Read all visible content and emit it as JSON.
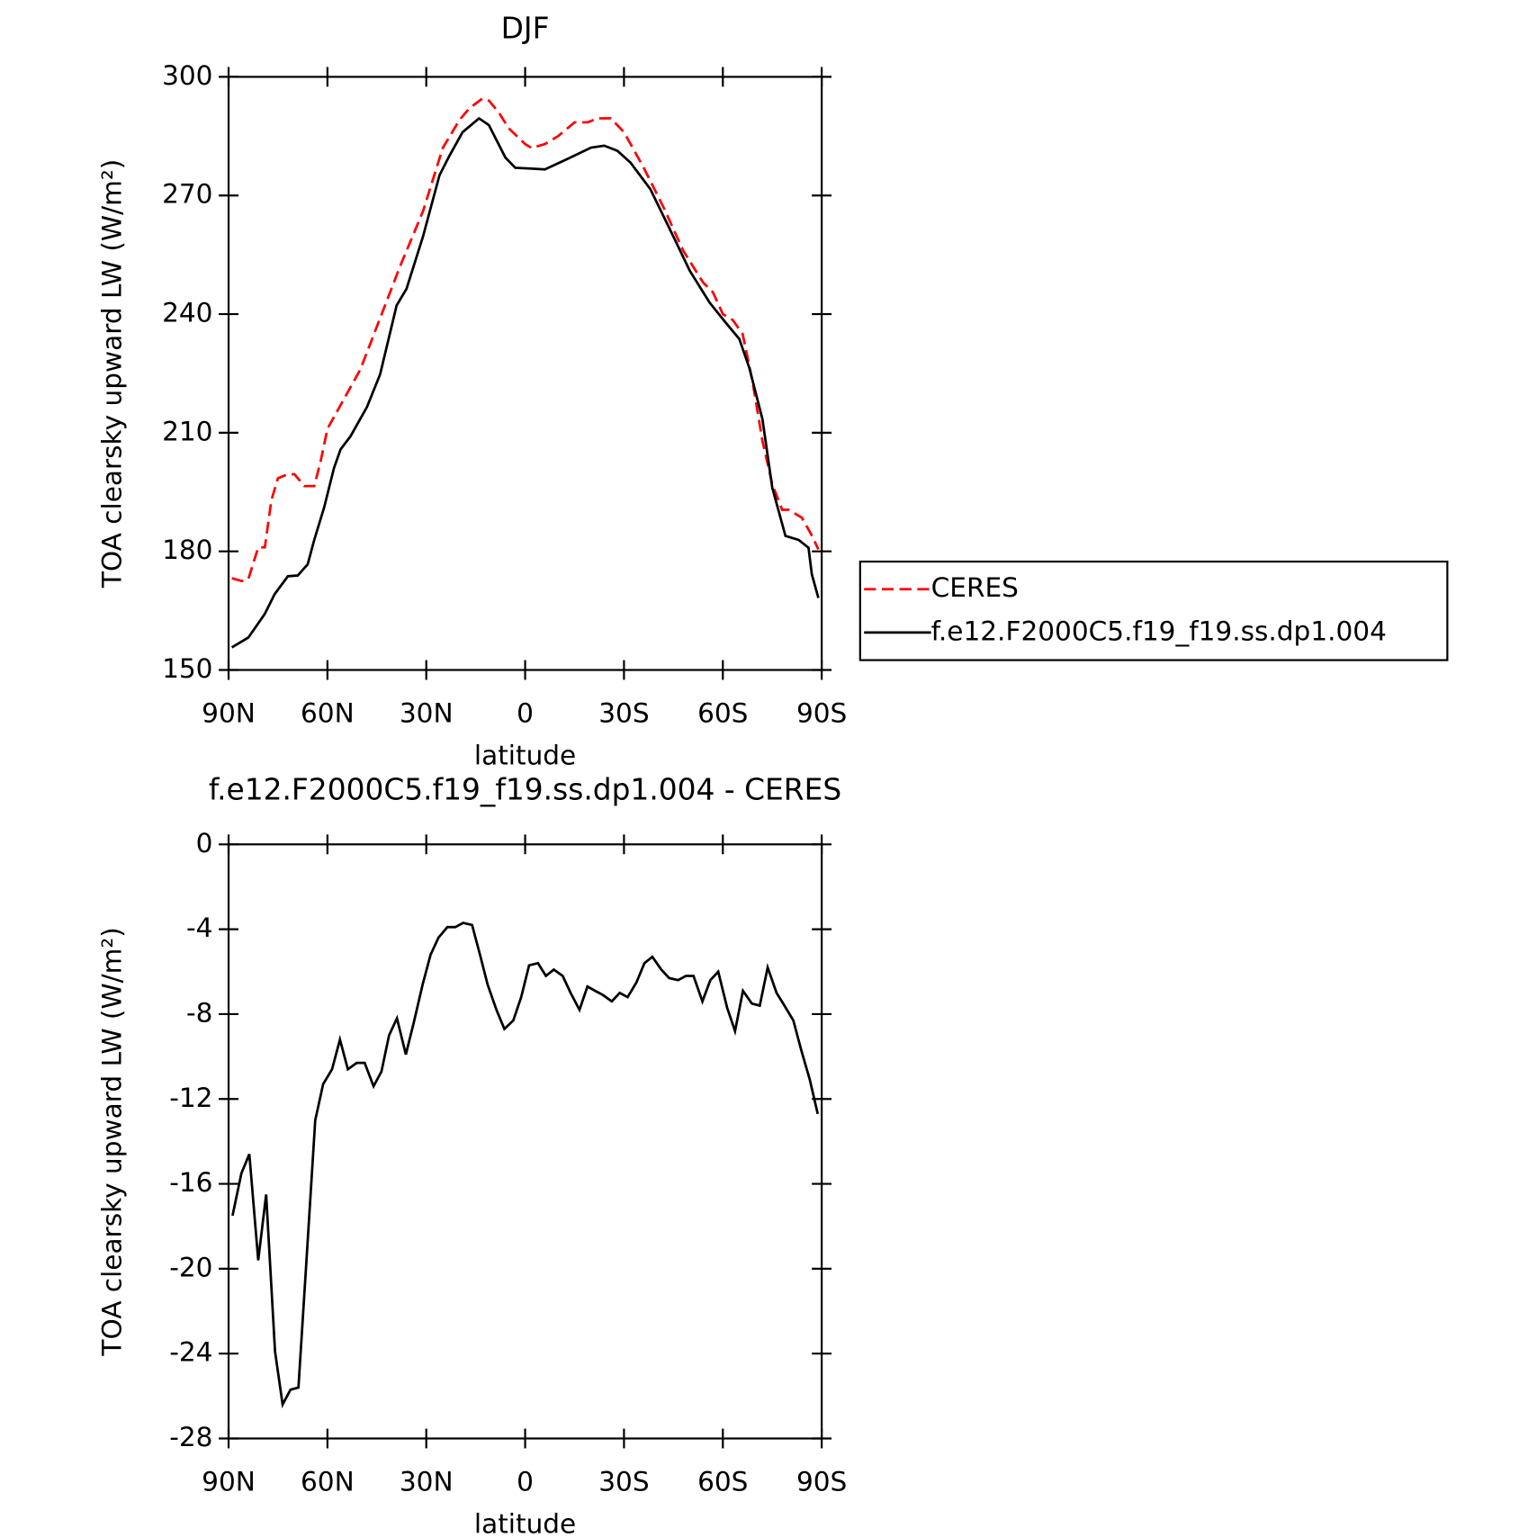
{
  "chart_data": [
    {
      "type": "line",
      "title": "DJF",
      "xlabel": "latitude",
      "ylabel": "TOA clearsky upward LW (W/m²)",
      "xlim": [
        90,
        -90
      ],
      "xticks": [
        {
          "value": 90,
          "label": "90N"
        },
        {
          "value": 60,
          "label": "60N"
        },
        {
          "value": 30,
          "label": "30N"
        },
        0,
        {
          "value": -30,
          "label": "30S"
        },
        {
          "value": -60,
          "label": "60S"
        },
        {
          "value": -90,
          "label": "90S"
        }
      ],
      "ylim": [
        150,
        300
      ],
      "yticks": [
        150,
        180,
        210,
        240,
        270,
        300
      ],
      "legend": "right",
      "series": [
        {
          "name": "CERES",
          "color": "#ff0000",
          "dash": true,
          "x": [
            89,
            86,
            84,
            81,
            79,
            77,
            75,
            72,
            70,
            67,
            64,
            62,
            60,
            56,
            50,
            44,
            38,
            31,
            25,
            20,
            17,
            13,
            11,
            8,
            5,
            0,
            -2,
            -6,
            -10,
            -15,
            -19,
            -22,
            -26,
            -30,
            -36,
            -42,
            -48,
            -54,
            -57,
            -60,
            -63,
            -66,
            -69,
            -72,
            -75,
            -78,
            -80,
            -84,
            -87,
            -89
          ],
          "values": [
            173.2,
            172.5,
            173,
            181,
            181,
            193,
            198.5,
            199.5,
            199.5,
            196.5,
            196.5,
            203,
            211,
            217,
            226,
            239,
            252,
            266,
            282,
            289,
            292,
            294.5,
            294,
            291,
            287,
            283,
            282,
            283,
            285,
            288.5,
            288.5,
            289.5,
            289.5,
            286,
            277,
            267,
            256,
            248,
            245.5,
            240,
            238.5,
            235,
            223,
            208,
            197,
            190.5,
            190.5,
            188.5,
            184,
            180.5
          ]
        },
        {
          "name": "f.e12.F2000C5.f19_f19.ss.dp1.004",
          "color": "#000000",
          "dash": false,
          "x": [
            89,
            84,
            79,
            76,
            72,
            69,
            66,
            64,
            61,
            58,
            56,
            53,
            48,
            44,
            39,
            36,
            31,
            26,
            23,
            19,
            14,
            11,
            6,
            3,
            -2,
            -6,
            -13,
            -20,
            -24,
            -28,
            -32,
            -38,
            -45,
            -50,
            -56,
            -61,
            -65,
            -68,
            -72,
            -75,
            -79,
            -83,
            -86,
            -87,
            -89
          ],
          "values": [
            155.7,
            158.2,
            164.2,
            169.2,
            173.7,
            173.9,
            176.7,
            182.9,
            191.1,
            201.1,
            205.8,
            209.1,
            216.5,
            224.8,
            242.2,
            246.4,
            259.6,
            275.1,
            280,
            286,
            289.5,
            287.8,
            279.6,
            277,
            276.8,
            276.6,
            279.3,
            282.1,
            282.6,
            281.3,
            278.3,
            271.6,
            259.6,
            250.9,
            242.9,
            237.7,
            233.7,
            226.5,
            213.5,
            196.1,
            183.9,
            182.9,
            180.9,
            174.2,
            168.2
          ]
        }
      ]
    },
    {
      "type": "line",
      "title": "f.e12.F2000C5.f19_f19.ss.dp1.004 - CERES",
      "xlabel": "latitude",
      "ylabel": "TOA clearsky upward LW (W/m²)",
      "xlim": [
        90,
        -90
      ],
      "xticks": [
        {
          "value": 90,
          "label": "90N"
        },
        {
          "value": 60,
          "label": "60N"
        },
        {
          "value": 30,
          "label": "30N"
        },
        0,
        {
          "value": -30,
          "label": "30S"
        },
        {
          "value": -60,
          "label": "60S"
        },
        {
          "value": -90,
          "label": "90S"
        }
      ],
      "ylim": [
        -28,
        0
      ],
      "yticks": [
        -28,
        -24,
        -20,
        -16,
        -12,
        -8,
        -4,
        0
      ],
      "color": "#000000",
      "x": [
        88.8,
        86.1,
        83.7,
        81.0,
        78.6,
        75.9,
        73.6,
        71.2,
        68.8,
        66.4,
        63.7,
        61.3,
        58.6,
        56.2,
        53.8,
        51.1,
        48.7,
        46.0,
        43.6,
        41.3,
        38.9,
        36.2,
        33.8,
        31.1,
        28.7,
        26.3,
        23.6,
        21.2,
        18.8,
        16.1,
        13.7,
        11.4,
        8.7,
        6.3,
        3.6,
        1.2,
        -1.2,
        -3.9,
        -6.3,
        -8.7,
        -11.4,
        -13.8,
        -16.5,
        -18.9,
        -21.2,
        -23.6,
        -26.3,
        -28.7,
        -31.1,
        -33.8,
        -36.2,
        -38.6,
        -41.3,
        -43.7,
        -46.4,
        -48.8,
        -51.1,
        -53.8,
        -56.2,
        -58.6,
        -61.3,
        -63.7,
        -66.1,
        -68.8,
        -71.2,
        -73.6,
        -76.3,
        -78.7,
        -81.4,
        -83.8,
        -86.4,
        -88.8
      ],
      "values": [
        -17.5,
        -15.5,
        -14.6,
        -19.6,
        -16.5,
        -23.9,
        -26.4,
        -25.7,
        -25.6,
        -19.7,
        -13.0,
        -11.3,
        -10.6,
        -9.2,
        -10.6,
        -10.3,
        -10.3,
        -11.4,
        -10.7,
        -9.0,
        -8.2,
        -9.9,
        -8.4,
        -6.6,
        -5.2,
        -4.4,
        -3.9,
        -3.9,
        -3.7,
        -3.8,
        -5.2,
        -6.6,
        -7.8,
        -8.7,
        -8.3,
        -7.2,
        -5.7,
        -5.6,
        -6.2,
        -5.9,
        -6.2,
        -7.0,
        -7.8,
        -6.7,
        -6.9,
        -7.1,
        -7.4,
        -7.0,
        -7.2,
        -6.5,
        -5.6,
        -5.3,
        -5.9,
        -6.3,
        -6.4,
        -6.2,
        -6.2,
        -7.4,
        -6.4,
        -6.0,
        -7.7,
        -8.8,
        -6.9,
        -7.5,
        -7.6,
        -5.8,
        -7.0,
        -7.6,
        -8.3,
        -9.7,
        -11.1,
        -12.7
      ]
    }
  ]
}
